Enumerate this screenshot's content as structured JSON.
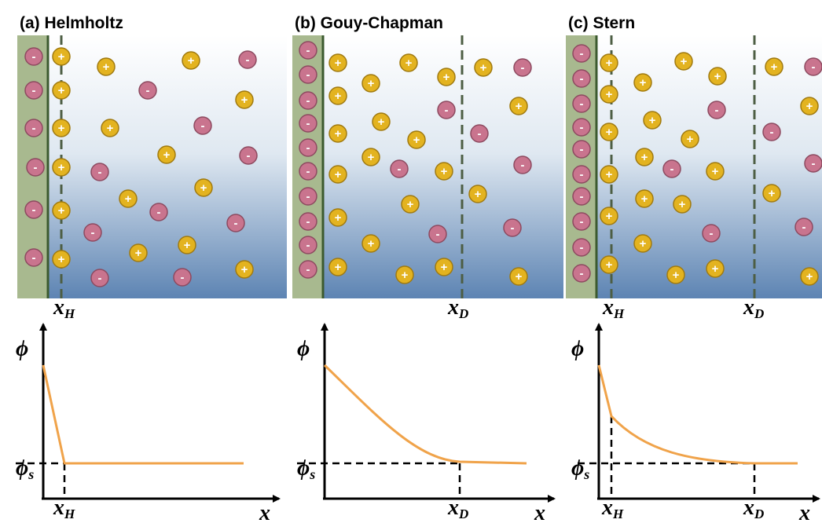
{
  "panels": [
    {
      "title": "(a) Helmholtz"
    },
    {
      "title": "(b) Gouy-Chapman"
    },
    {
      "title": "(c) Stern"
    }
  ],
  "symbols": {
    "x": "x",
    "sub_h": "H",
    "sub_d": "D",
    "phi": "ϕ",
    "sub_s": "s"
  },
  "ions": {
    "positive": "+",
    "negative": "-"
  }
}
